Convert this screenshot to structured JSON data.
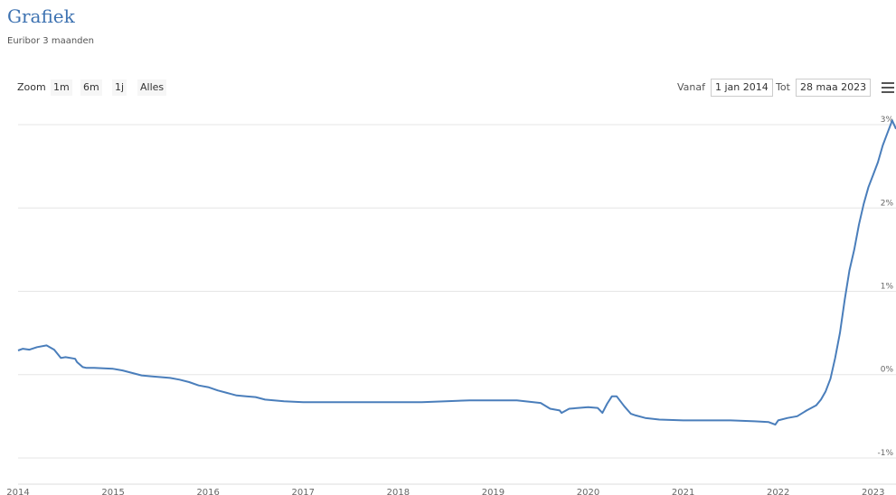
{
  "header": {
    "title": "Grafiek",
    "subtitle": "Euribor 3 maanden"
  },
  "toolbar": {
    "zoom_label": "Zoom",
    "zoom_buttons": [
      "1m",
      "6m",
      "1j",
      "Alles"
    ],
    "from_label": "Vanaf",
    "from_value": "1 jan 2014",
    "to_label": "Tot",
    "to_value": "28 maa 2023",
    "menu_icon": "hamburger-menu-icon"
  },
  "chart_data": {
    "type": "line",
    "title": "",
    "xlabel": "",
    "ylabel": "",
    "xlim": [
      2014.0,
      2023.24
    ],
    "ylim": [
      -1.25,
      3.25
    ],
    "grid": true,
    "line_color": "#4a7ebb",
    "x_ticks": [
      "2014",
      "2015",
      "2016",
      "2017",
      "2018",
      "2019",
      "2020",
      "2021",
      "2022",
      "2023"
    ],
    "y_ticks": [
      {
        "value": 3,
        "label": "3%"
      },
      {
        "value": 2,
        "label": "2%"
      },
      {
        "value": 1,
        "label": "1%"
      },
      {
        "value": 0,
        "label": "0%"
      },
      {
        "value": -1,
        "label": "-1%"
      }
    ],
    "series": [
      {
        "x": [
          2014.0,
          2014.05,
          2014.12,
          2014.2,
          2014.3,
          2014.38,
          2014.45,
          2014.5,
          2014.6,
          2014.62,
          2014.68,
          2014.72,
          2014.8,
          2015.0,
          2015.1,
          2015.2,
          2015.3,
          2015.4,
          2015.5,
          2015.6,
          2015.7,
          2015.8,
          2015.9,
          2016.0,
          2016.1,
          2016.2,
          2016.3,
          2016.4,
          2016.5,
          2016.6,
          2016.8,
          2017.0,
          2017.25,
          2017.5,
          2017.75,
          2018.0,
          2018.25,
          2018.5,
          2018.75,
          2019.0,
          2019.25,
          2019.5,
          2019.6,
          2019.7,
          2019.72,
          2019.8,
          2020.0,
          2020.1,
          2020.15,
          2020.2,
          2020.25,
          2020.3,
          2020.38,
          2020.45,
          2020.5,
          2020.6,
          2020.75,
          2021.0,
          2021.25,
          2021.5,
          2021.75,
          2021.9,
          2021.97,
          2022.0,
          2022.1,
          2022.2,
          2022.3,
          2022.4,
          2022.45,
          2022.5,
          2022.55,
          2022.6,
          2022.65,
          2022.7,
          2022.75,
          2022.8,
          2022.85,
          2022.9,
          2022.95,
          2023.0,
          2023.05,
          2023.1,
          2023.15,
          2023.2,
          2023.24
        ],
        "y": [
          0.29,
          0.31,
          0.3,
          0.33,
          0.35,
          0.3,
          0.2,
          0.21,
          0.19,
          0.15,
          0.09,
          0.08,
          0.08,
          0.07,
          0.05,
          0.02,
          -0.01,
          -0.02,
          -0.03,
          -0.04,
          -0.06,
          -0.09,
          -0.13,
          -0.15,
          -0.19,
          -0.22,
          -0.25,
          -0.26,
          -0.27,
          -0.3,
          -0.32,
          -0.33,
          -0.33,
          -0.33,
          -0.33,
          -0.33,
          -0.33,
          -0.32,
          -0.31,
          -0.31,
          -0.31,
          -0.34,
          -0.41,
          -0.43,
          -0.46,
          -0.41,
          -0.39,
          -0.4,
          -0.46,
          -0.35,
          -0.26,
          -0.26,
          -0.38,
          -0.47,
          -0.49,
          -0.52,
          -0.54,
          -0.55,
          -0.55,
          -0.55,
          -0.56,
          -0.57,
          -0.6,
          -0.55,
          -0.52,
          -0.5,
          -0.43,
          -0.37,
          -0.3,
          -0.2,
          -0.05,
          0.2,
          0.5,
          0.9,
          1.25,
          1.5,
          1.8,
          2.05,
          2.25,
          2.4,
          2.55,
          2.75,
          2.9,
          3.05,
          2.95
        ]
      }
    ]
  }
}
